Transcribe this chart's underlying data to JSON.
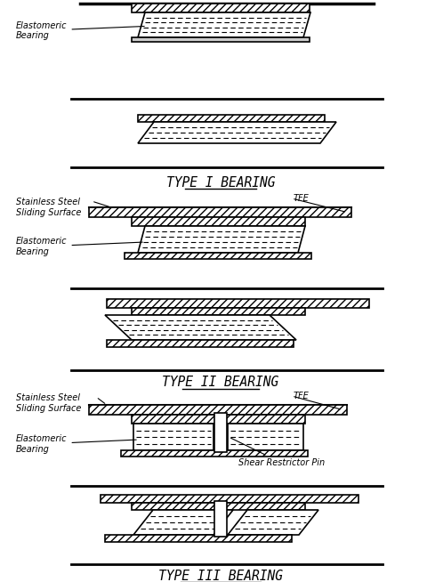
{
  "background_color": "#ffffff",
  "type1_label": "TYPE I BEARING",
  "type2_label": "TYPE II BEARING",
  "type3_label": "TYPE III BEARING",
  "fig_w": 4.81,
  "fig_h": 6.54,
  "dpi": 100
}
